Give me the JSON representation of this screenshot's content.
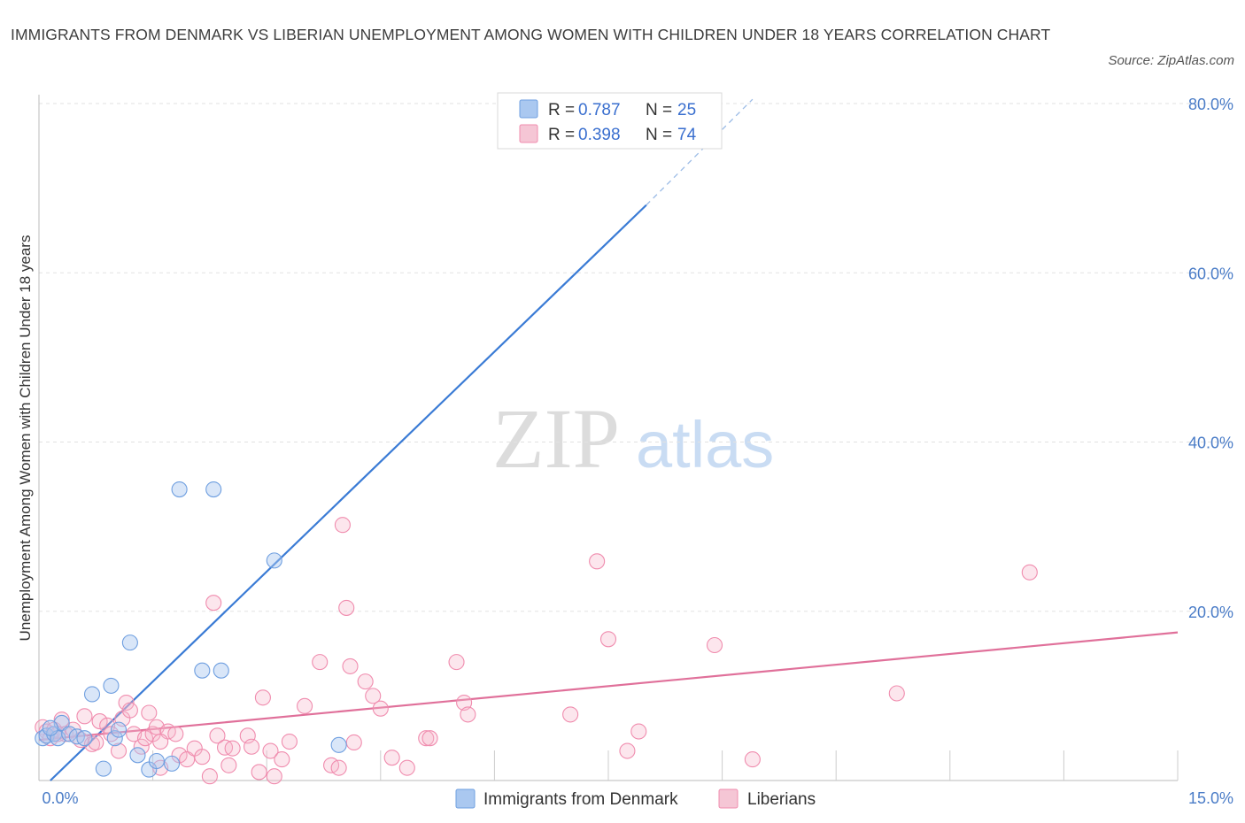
{
  "title": "IMMIGRANTS FROM DENMARK VS LIBERIAN UNEMPLOYMENT AMONG WOMEN WITH CHILDREN UNDER 18 YEARS CORRELATION CHART",
  "source": "Source: ZipAtlas.com",
  "watermark": {
    "zip": "ZIP",
    "atlas": "atlas"
  },
  "legend": {
    "r_label": "R =",
    "n_label": "N =",
    "series": [
      {
        "r": "0.787",
        "n": "25",
        "color": "#aac8f0"
      },
      {
        "r": "0.398",
        "n": "74",
        "color": "#f5b8cb"
      }
    ]
  },
  "chart_data": {
    "type": "scatter",
    "title": "IMMIGRANTS FROM DENMARK VS LIBERIAN UNEMPLOYMENT AMONG WOMEN WITH CHILDREN UNDER 18 YEARS CORRELATION CHART",
    "xlabel": "",
    "ylabel": "Unemployment Among Women with Children Under 18 years",
    "xlim": [
      0,
      15
    ],
    "ylim": [
      0,
      80
    ],
    "x_tick_labels": [
      "0.0%",
      "15.0%"
    ],
    "y_tick_labels": [
      "20.0%",
      "40.0%",
      "60.0%",
      "80.0%"
    ],
    "y_tick_values": [
      20,
      40,
      60,
      80
    ],
    "series": [
      {
        "name": "Immigrants from Denmark",
        "color": "#6f9fe0",
        "line_color": "#3a7bd5",
        "trend": {
          "x0": 0.15,
          "y0": 0.0,
          "x1": 8.0,
          "y1": 68.0,
          "dash_to_x": 9.4,
          "dash_to_y": 80.5
        },
        "points": [
          [
            0.05,
            5.0
          ],
          [
            0.1,
            5.3
          ],
          [
            0.2,
            5.5
          ],
          [
            0.25,
            5.0
          ],
          [
            0.3,
            6.8
          ],
          [
            0.4,
            5.5
          ],
          [
            0.5,
            5.2
          ],
          [
            0.6,
            5.0
          ],
          [
            0.7,
            10.2
          ],
          [
            0.85,
            1.4
          ],
          [
            0.95,
            11.2
          ],
          [
            1.0,
            5.0
          ],
          [
            1.2,
            16.3
          ],
          [
            1.3,
            3.0
          ],
          [
            1.45,
            1.3
          ],
          [
            1.55,
            2.3
          ],
          [
            1.75,
            2.0
          ],
          [
            1.85,
            34.4
          ],
          [
            2.15,
            13.0
          ],
          [
            2.3,
            34.4
          ],
          [
            2.4,
            13.0
          ],
          [
            3.1,
            26.0
          ],
          [
            3.95,
            4.2
          ],
          [
            1.05,
            6.0
          ],
          [
            0.15,
            6.2
          ]
        ]
      },
      {
        "name": "Liberians",
        "color": "#f08cae",
        "line_color": "#e0709a",
        "trend": {
          "x0": 0.0,
          "y0": 4.8,
          "x1": 15.0,
          "y1": 17.5
        },
        "points": [
          [
            0.05,
            6.3
          ],
          [
            0.1,
            5.8
          ],
          [
            0.15,
            5.0
          ],
          [
            0.2,
            6.0
          ],
          [
            0.3,
            7.2
          ],
          [
            0.35,
            5.5
          ],
          [
            0.45,
            6.0
          ],
          [
            0.55,
            4.8
          ],
          [
            0.6,
            7.6
          ],
          [
            0.7,
            4.3
          ],
          [
            0.8,
            7.0
          ],
          [
            0.9,
            6.5
          ],
          [
            0.95,
            5.5
          ],
          [
            1.05,
            3.5
          ],
          [
            1.1,
            7.3
          ],
          [
            1.15,
            9.2
          ],
          [
            1.2,
            8.3
          ],
          [
            1.25,
            5.5
          ],
          [
            1.35,
            4.0
          ],
          [
            1.4,
            5.0
          ],
          [
            1.45,
            8.0
          ],
          [
            1.5,
            5.5
          ],
          [
            1.55,
            6.3
          ],
          [
            1.6,
            1.5
          ],
          [
            1.7,
            5.8
          ],
          [
            1.8,
            5.5
          ],
          [
            1.85,
            3.0
          ],
          [
            1.95,
            2.5
          ],
          [
            2.05,
            3.8
          ],
          [
            2.15,
            2.8
          ],
          [
            2.25,
            0.5
          ],
          [
            2.3,
            21.0
          ],
          [
            2.35,
            5.3
          ],
          [
            2.45,
            3.9
          ],
          [
            2.5,
            1.8
          ],
          [
            2.55,
            3.8
          ],
          [
            2.75,
            5.3
          ],
          [
            2.9,
            1.0
          ],
          [
            2.95,
            9.8
          ],
          [
            3.05,
            3.5
          ],
          [
            3.1,
            0.5
          ],
          [
            3.2,
            2.5
          ],
          [
            3.3,
            4.6
          ],
          [
            3.5,
            8.8
          ],
          [
            3.7,
            14.0
          ],
          [
            3.85,
            1.8
          ],
          [
            3.95,
            1.5
          ],
          [
            4.0,
            30.2
          ],
          [
            4.05,
            20.4
          ],
          [
            4.1,
            13.5
          ],
          [
            4.15,
            4.5
          ],
          [
            4.3,
            11.7
          ],
          [
            4.4,
            10.0
          ],
          [
            4.5,
            8.5
          ],
          [
            4.65,
            2.7
          ],
          [
            4.85,
            1.5
          ],
          [
            5.1,
            5.0
          ],
          [
            5.15,
            5.0
          ],
          [
            5.5,
            14.0
          ],
          [
            5.6,
            9.2
          ],
          [
            5.65,
            7.8
          ],
          [
            7.0,
            7.8
          ],
          [
            7.35,
            25.9
          ],
          [
            7.5,
            16.7
          ],
          [
            7.75,
            3.5
          ],
          [
            7.9,
            5.8
          ],
          [
            8.9,
            16.0
          ],
          [
            9.4,
            2.5
          ],
          [
            11.3,
            10.3
          ],
          [
            13.05,
            24.6
          ],
          [
            0.25,
            5.5
          ],
          [
            0.75,
            4.5
          ],
          [
            1.6,
            4.6
          ],
          [
            2.8,
            4.0
          ]
        ]
      }
    ],
    "legend_position": "bottom-center"
  }
}
